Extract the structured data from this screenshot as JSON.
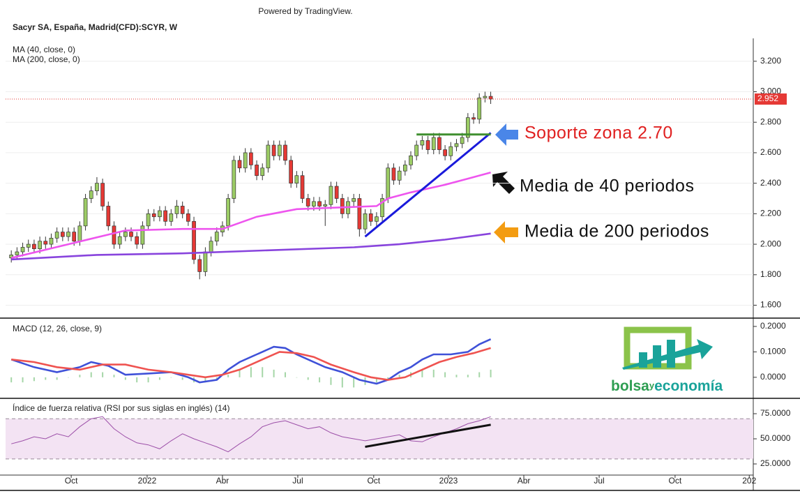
{
  "header": {
    "powered_by": "Powered by TradingView.",
    "symbol": "Sacyr SA, España, Madrid(CFD):SCYR, W"
  },
  "logo": {
    "part_1": "bolsa",
    "part_2": "y",
    "part_3": "economía"
  },
  "chart_data": [
    {
      "type": "candlestick",
      "xlim": [
        -1,
        130
      ],
      "ylim": [
        1.52,
        3.35
      ],
      "grid": true,
      "yticks": [
        {
          "value": 1.6,
          "label": "1.600"
        },
        {
          "value": 1.8,
          "label": "1.800"
        },
        {
          "value": 2.0,
          "label": "2.000"
        },
        {
          "value": 2.2,
          "label": "2.200"
        },
        {
          "value": 2.4,
          "label": "2.400"
        },
        {
          "value": 2.6,
          "label": "2.600"
        },
        {
          "value": 2.8,
          "label": "2.800"
        },
        {
          "value": 3.0,
          "label": "3.000"
        },
        {
          "value": 3.2,
          "label": "3.200"
        }
      ],
      "last_price": 2.952,
      "last_price_color": "#e53935",
      "x": [
        0,
        1,
        2,
        3,
        4,
        5,
        6,
        7,
        8,
        9,
        10,
        11,
        12,
        13,
        14,
        15,
        16,
        17,
        18,
        19,
        20,
        21,
        22,
        23,
        24,
        25,
        26,
        27,
        28,
        29,
        30,
        31,
        32,
        33,
        34,
        35,
        36,
        37,
        38,
        39,
        40,
        41,
        42,
        43,
        44,
        45,
        46,
        47,
        48,
        49,
        50,
        51,
        52,
        53,
        54,
        55,
        56,
        57,
        58,
        59,
        60,
        61,
        62,
        63,
        64,
        65,
        66,
        67,
        68,
        69,
        70,
        71,
        72,
        73,
        74,
        75,
        76,
        77,
        78,
        79,
        80,
        81,
        82,
        83,
        84
      ],
      "candles": {
        "up_color": "#9ccc65",
        "down_color": "#e53935",
        "open": [
          1.91,
          1.93,
          1.95,
          1.98,
          2.0,
          1.97,
          2.02,
          2.0,
          2.04,
          2.08,
          2.05,
          2.08,
          2.02,
          2.12,
          2.3,
          2.35,
          2.4,
          2.25,
          2.12,
          2.0,
          2.05,
          2.08,
          2.05,
          2.0,
          2.12,
          2.2,
          2.18,
          2.22,
          2.15,
          2.2,
          2.25,
          2.2,
          2.15,
          1.9,
          1.82,
          1.95,
          2.02,
          2.08,
          2.12,
          2.3,
          2.55,
          2.5,
          2.6,
          2.52,
          2.45,
          2.5,
          2.65,
          2.58,
          2.65,
          2.55,
          2.4,
          2.45,
          2.3,
          2.25,
          2.28,
          2.25,
          2.26,
          2.38,
          2.3,
          2.2,
          2.28,
          2.3,
          2.1,
          2.2,
          2.15,
          2.18,
          2.3,
          2.5,
          2.42,
          2.48,
          2.52,
          2.58,
          2.65,
          2.68,
          2.62,
          2.7,
          2.62,
          2.58,
          2.64,
          2.66,
          2.7,
          2.83,
          2.82,
          2.96,
          2.97
        ],
        "high": [
          1.96,
          1.98,
          2.01,
          2.03,
          2.03,
          2.05,
          2.05,
          2.07,
          2.11,
          2.11,
          2.11,
          2.11,
          2.15,
          2.33,
          2.38,
          2.44,
          2.43,
          2.28,
          2.15,
          2.08,
          2.11,
          2.11,
          2.08,
          2.15,
          2.23,
          2.23,
          2.25,
          2.25,
          2.23,
          2.29,
          2.28,
          2.23,
          2.18,
          1.93,
          1.98,
          2.05,
          2.11,
          2.15,
          2.33,
          2.58,
          2.58,
          2.63,
          2.63,
          2.55,
          2.53,
          2.68,
          2.68,
          2.68,
          2.68,
          2.58,
          2.48,
          2.48,
          2.33,
          2.31,
          2.31,
          2.29,
          2.41,
          2.41,
          2.33,
          2.31,
          2.33,
          2.33,
          2.23,
          2.23,
          2.21,
          2.33,
          2.53,
          2.53,
          2.51,
          2.55,
          2.61,
          2.68,
          2.71,
          2.71,
          2.73,
          2.73,
          2.65,
          2.67,
          2.69,
          2.73,
          2.86,
          2.86,
          2.99,
          3.0,
          3.0
        ],
        "low": [
          1.88,
          1.9,
          1.92,
          1.95,
          1.94,
          1.94,
          1.97,
          1.97,
          2.01,
          2.02,
          2.02,
          1.99,
          1.99,
          2.09,
          2.27,
          2.32,
          2.22,
          2.09,
          1.97,
          1.97,
          2.02,
          2.02,
          1.97,
          1.97,
          2.09,
          2.15,
          2.15,
          2.12,
          2.12,
          2.17,
          2.17,
          2.12,
          1.87,
          1.77,
          1.79,
          1.92,
          1.99,
          2.05,
          2.09,
          2.27,
          2.47,
          2.47,
          2.49,
          2.42,
          2.42,
          2.47,
          2.55,
          2.55,
          2.52,
          2.37,
          2.37,
          2.27,
          2.22,
          2.22,
          2.22,
          2.12,
          2.23,
          2.27,
          2.17,
          2.17,
          2.25,
          2.05,
          2.07,
          2.12,
          2.12,
          2.15,
          2.27,
          2.39,
          2.39,
          2.45,
          2.49,
          2.55,
          2.62,
          2.59,
          2.59,
          2.59,
          2.55,
          2.55,
          2.61,
          2.63,
          2.67,
          2.79,
          2.79,
          2.93,
          2.92
        ],
        "close": [
          1.93,
          1.95,
          1.98,
          2.0,
          1.97,
          2.02,
          2.0,
          2.04,
          2.08,
          2.05,
          2.08,
          2.02,
          2.12,
          2.3,
          2.35,
          2.4,
          2.25,
          2.12,
          2.0,
          2.05,
          2.08,
          2.05,
          2.0,
          2.12,
          2.2,
          2.18,
          2.22,
          2.15,
          2.2,
          2.25,
          2.2,
          2.15,
          1.9,
          1.82,
          1.95,
          2.02,
          2.08,
          2.12,
          2.3,
          2.55,
          2.5,
          2.6,
          2.52,
          2.45,
          2.5,
          2.65,
          2.58,
          2.65,
          2.55,
          2.4,
          2.45,
          2.3,
          2.25,
          2.28,
          2.25,
          2.26,
          2.38,
          2.3,
          2.2,
          2.28,
          2.3,
          2.1,
          2.2,
          2.15,
          2.18,
          2.3,
          2.5,
          2.42,
          2.48,
          2.52,
          2.58,
          2.65,
          2.68,
          2.62,
          2.7,
          2.62,
          2.58,
          2.64,
          2.66,
          2.7,
          2.83,
          2.82,
          2.96,
          2.97,
          2.952
        ]
      },
      "series": [
        {
          "name": "MA (40, close, 0)",
          "color": "#ee55ee",
          "x": [
            0,
            10,
            20,
            30,
            37,
            43,
            50,
            57,
            64,
            66,
            70,
            76,
            80,
            84
          ],
          "values": [
            1.91,
            2.0,
            2.09,
            2.1,
            2.1,
            2.18,
            2.23,
            2.24,
            2.25,
            2.3,
            2.34,
            2.39,
            2.43,
            2.47
          ]
        },
        {
          "name": "MA (200, close, 0)",
          "color": "#8844dd",
          "x": [
            0,
            15,
            30,
            45,
            60,
            68,
            76,
            84
          ],
          "values": [
            1.9,
            1.93,
            1.94,
            1.96,
            1.98,
            2.0,
            2.03,
            2.07
          ]
        }
      ],
      "trendlines": [
        {
          "color": "#1a1adb",
          "x": [
            62,
            84
          ],
          "values": [
            2.05,
            2.73
          ]
        },
        {
          "color": "#3f8f2f",
          "x": [
            71,
            84
          ],
          "values": [
            2.72,
            2.72
          ]
        }
      ],
      "annotations": [
        {
          "text": "Soporte zona 2.70",
          "color": "#e02020"
        },
        {
          "text": "Media de 40 periodos",
          "color": "#111111"
        },
        {
          "text": "Media de 200 periodos",
          "color": "#111111"
        }
      ]
    },
    {
      "type": "macd",
      "title": "MACD (12, 26, close, 9)",
      "xlim": [
        -1,
        130
      ],
      "ylim": [
        -0.08,
        0.23
      ],
      "yticks": [
        {
          "value": 0,
          "label": "0.0000"
        },
        {
          "value": 0.1,
          "label": "0.1000"
        },
        {
          "value": 0.2,
          "label": "0.2000"
        }
      ],
      "histogram": {
        "color": "#a5d6a7",
        "x": [
          0,
          2,
          4,
          6,
          8,
          10,
          12,
          14,
          16,
          18,
          20,
          22,
          24,
          26,
          28,
          30,
          32,
          34,
          36,
          38,
          40,
          42,
          44,
          46,
          48,
          50,
          52,
          54,
          56,
          58,
          60,
          62,
          64,
          66,
          68,
          70,
          72,
          74,
          76,
          78,
          80,
          82,
          84
        ],
        "values": [
          -0.02,
          -0.02,
          -0.015,
          -0.01,
          -0.01,
          0.0,
          0.01,
          0.02,
          0.02,
          0.01,
          -0.01,
          -0.02,
          -0.02,
          -0.01,
          0.0,
          -0.01,
          -0.02,
          -0.02,
          -0.01,
          0.01,
          0.03,
          0.04,
          0.04,
          0.03,
          0.02,
          0.0,
          -0.01,
          -0.02,
          -0.03,
          -0.04,
          -0.04,
          -0.03,
          -0.02,
          -0.01,
          0.01,
          0.02,
          0.03,
          0.03,
          0.02,
          0.01,
          0.01,
          0.02,
          0.03
        ]
      },
      "series": [
        {
          "color": "#3f51d8",
          "x": [
            0,
            4,
            8,
            12,
            14,
            17,
            20,
            24,
            28,
            31,
            33,
            36,
            38,
            40,
            43,
            46,
            48,
            50,
            52,
            55,
            58,
            61,
            64,
            66,
            68,
            70,
            72,
            74,
            77,
            80,
            82,
            84
          ],
          "values": [
            0.07,
            0.04,
            0.02,
            0.04,
            0.06,
            0.045,
            0.01,
            0.015,
            0.02,
            0.0,
            -0.02,
            -0.01,
            0.03,
            0.06,
            0.09,
            0.12,
            0.115,
            0.09,
            0.07,
            0.04,
            0.02,
            -0.01,
            -0.025,
            -0.01,
            0.02,
            0.04,
            0.07,
            0.09,
            0.09,
            0.1,
            0.13,
            0.15
          ]
        },
        {
          "color": "#ef5350",
          "x": [
            0,
            4,
            8,
            12,
            16,
            20,
            24,
            28,
            31,
            34,
            37,
            40,
            44,
            47,
            50,
            53,
            56,
            60,
            63,
            66,
            69,
            72,
            75,
            78,
            81,
            84
          ],
          "values": [
            0.07,
            0.06,
            0.04,
            0.03,
            0.05,
            0.05,
            0.03,
            0.02,
            0.01,
            0.0,
            0.01,
            0.03,
            0.07,
            0.1,
            0.095,
            0.08,
            0.05,
            0.02,
            0.0,
            -0.01,
            0.0,
            0.03,
            0.06,
            0.08,
            0.095,
            0.115
          ]
        }
      ]
    },
    {
      "type": "rsi",
      "title": "Índice de fuerza relativa (RSI por sus siglas en inglés) (14)",
      "xlim": [
        -1,
        130
      ],
      "ylim": [
        14.6,
        89.6
      ],
      "band": [
        30,
        70
      ],
      "band_color": "#f3e3f3",
      "yticks": [
        {
          "value": 25,
          "label": "25.0000"
        },
        {
          "value": 50,
          "label": "50.0000"
        },
        {
          "value": 75,
          "label": "75.0000"
        }
      ],
      "xticks": [
        {
          "value": 10.5,
          "label": "Oct"
        },
        {
          "value": 23.8,
          "label": "2022"
        },
        {
          "value": 37.0,
          "label": "Abr"
        },
        {
          "value": 50.2,
          "label": "Jul"
        },
        {
          "value": 63.5,
          "label": "Oct"
        },
        {
          "value": 76.6,
          "label": "2023"
        },
        {
          "value": 89.8,
          "label": "Abr"
        },
        {
          "value": 103.0,
          "label": "Jul"
        },
        {
          "value": 116.3,
          "label": "Oct"
        },
        {
          "value": 129.3,
          "label": "202"
        }
      ],
      "series": [
        {
          "color": "#9c4fa8",
          "x": [
            0,
            2,
            4,
            6,
            8,
            10,
            12,
            14,
            16,
            18,
            20,
            22,
            24,
            26,
            28,
            30,
            32,
            34,
            36,
            38,
            40,
            42,
            44,
            46,
            48,
            50,
            52,
            54,
            56,
            58,
            60,
            62,
            64,
            66,
            68,
            70,
            72,
            74,
            76,
            78,
            80,
            82,
            84
          ],
          "values": [
            45,
            48,
            52,
            50,
            55,
            52,
            62,
            70,
            72,
            60,
            52,
            46,
            44,
            40,
            48,
            55,
            50,
            46,
            42,
            37,
            45,
            52,
            62,
            66,
            68,
            64,
            60,
            62,
            56,
            52,
            50,
            48,
            50,
            52,
            54,
            48,
            47,
            52,
            56,
            60,
            65,
            68,
            72
          ]
        }
      ],
      "trendlines": [
        {
          "color": "#111111",
          "x": [
            62,
            84
          ],
          "values": [
            42,
            64
          ]
        }
      ]
    }
  ]
}
